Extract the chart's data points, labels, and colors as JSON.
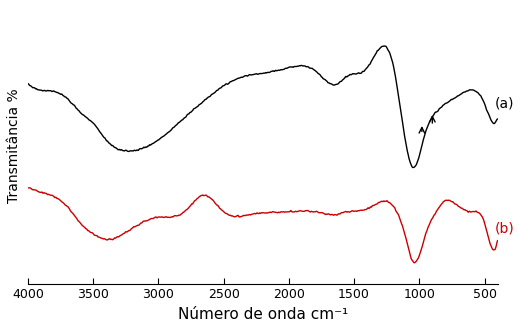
{
  "title": "",
  "xlabel": "Número de onda cm⁻¹",
  "ylabel": "Transmitância %",
  "xlim": [
    4000,
    400
  ],
  "ylim_a": [
    0,
    1
  ],
  "ylim_b": [
    0,
    1
  ],
  "label_a": "(a)",
  "label_b": "(b)",
  "color_a": "#000000",
  "color_b": "#cc0000",
  "xticks": [
    4000,
    3500,
    3000,
    2500,
    2000,
    1500,
    1000,
    500
  ],
  "background_color": "#ffffff"
}
